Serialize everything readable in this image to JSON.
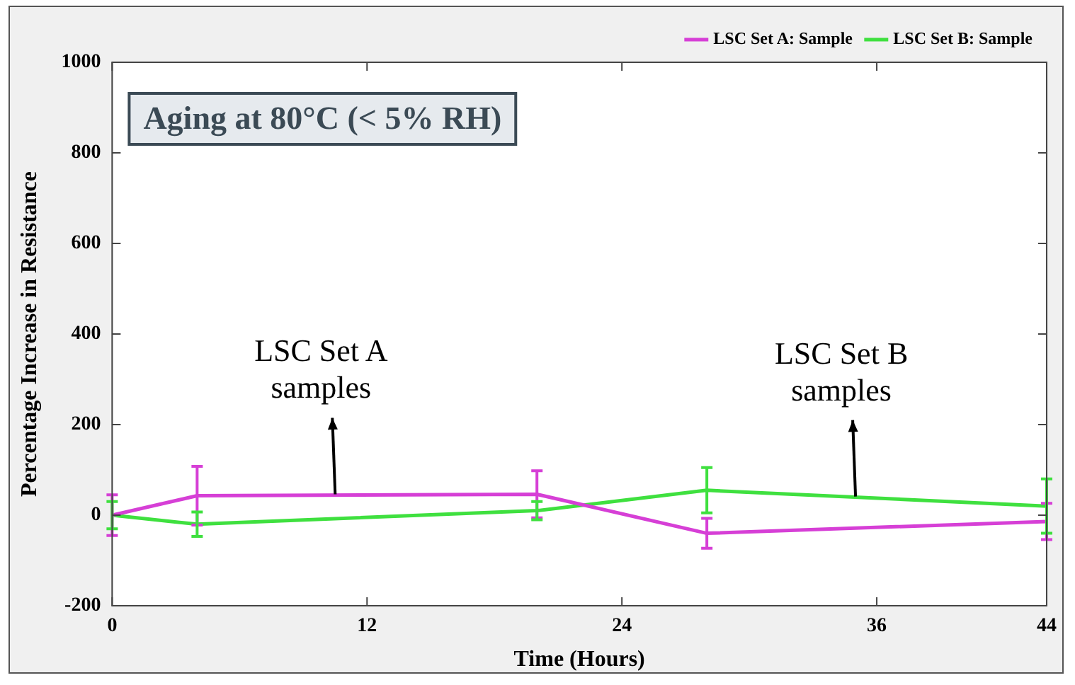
{
  "chart_data": {
    "type": "line",
    "xlabel": "Time (Hours)",
    "ylabel": "Percentage Increase in Resistance",
    "x": [
      0,
      4,
      20,
      28,
      44
    ],
    "series": [
      {
        "name": "LSC Set A: Sample",
        "color": "#d63fd6",
        "values": [
          0,
          43,
          46,
          -40,
          -14
        ],
        "errors": [
          45,
          65,
          52,
          33,
          40
        ]
      },
      {
        "name": "LSC Set B: Sample",
        "color": "#3fe03f",
        "values": [
          0,
          -20,
          10,
          55,
          20
        ],
        "errors": [
          30,
          27,
          20,
          50,
          60
        ]
      }
    ],
    "xlim": [
      0,
      44
    ],
    "xticks": [
      0,
      12,
      24,
      36,
      44
    ],
    "ylim": [
      -200,
      1000
    ],
    "yticks": [
      -200,
      0,
      200,
      400,
      600,
      800,
      1000
    ],
    "grid": false,
    "legend": "top right",
    "marker": "none",
    "line_style": "solid",
    "annotations": [
      "Aging at 80°C (< 5% RH)",
      {
        "text": "LSC Set A samples",
        "x": 10.5,
        "y": 43
      },
      {
        "text": "LSC Set B samples",
        "x": 35,
        "y": 38
      }
    ]
  }
}
